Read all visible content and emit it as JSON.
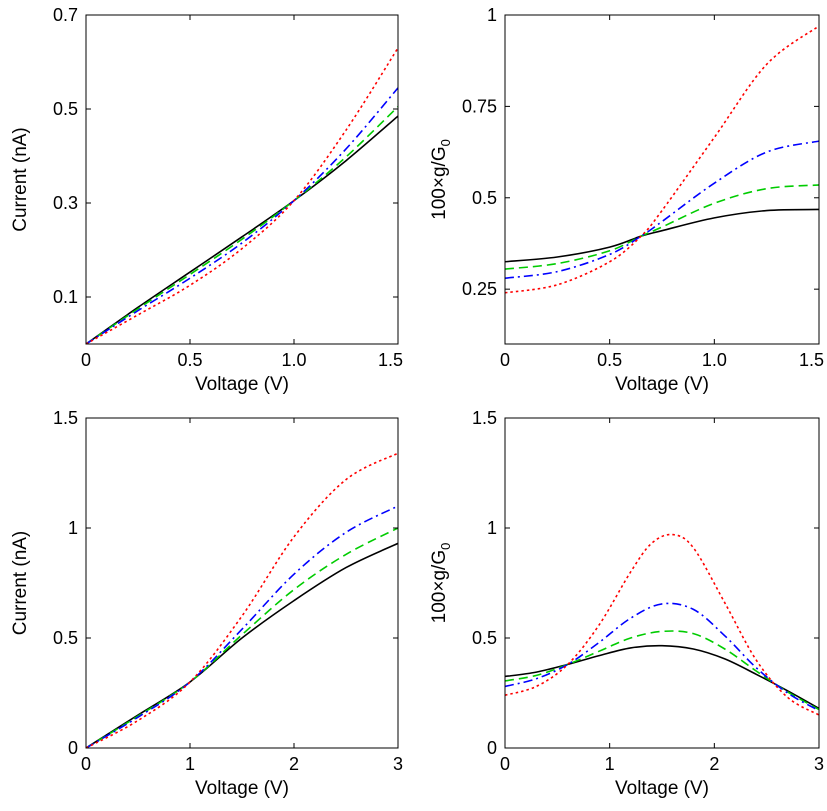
{
  "chart_data": [
    {
      "type": "line",
      "xlabel": "Voltage (V)",
      "ylabel": "Current (nA)",
      "xlim": [
        0,
        1.5
      ],
      "ylim": [
        0,
        0.7
      ],
      "xticks": [
        0,
        0.5,
        1,
        1.5
      ],
      "xtick_labels": [
        "0",
        "0.5",
        "1.0",
        "1.5"
      ],
      "yticks": [
        0.1,
        0.3,
        0.5,
        0.7
      ],
      "ytick_labels": [
        "0.1",
        "0.3",
        "0.5",
        "0.7"
      ],
      "grid": false,
      "series": [
        {
          "color": "#000000",
          "style": "solid",
          "x": [
            0,
            0.25,
            0.5,
            0.75,
            1.0,
            1.25,
            1.5
          ],
          "y": [
            0,
            0.078,
            0.153,
            0.228,
            0.305,
            0.39,
            0.485
          ]
        },
        {
          "color": "#00cc00",
          "style": "dash",
          "x": [
            0,
            0.25,
            0.5,
            0.75,
            1.0,
            1.25,
            1.5
          ],
          "y": [
            0,
            0.075,
            0.148,
            0.223,
            0.305,
            0.398,
            0.505
          ]
        },
        {
          "color": "#0000ff",
          "style": "dashdot",
          "x": [
            0,
            0.25,
            0.5,
            0.75,
            1.0,
            1.25,
            1.5
          ],
          "y": [
            0,
            0.071,
            0.14,
            0.215,
            0.305,
            0.415,
            0.545
          ]
        },
        {
          "color": "#ff0000",
          "style": "dot",
          "x": [
            0,
            0.25,
            0.5,
            0.75,
            1.0,
            1.25,
            1.5
          ],
          "y": [
            0,
            0.062,
            0.125,
            0.203,
            0.305,
            0.455,
            0.63
          ]
        }
      ]
    },
    {
      "type": "line",
      "xlabel": "Voltage (V)",
      "ylabel": "100×g/G",
      "ylabel_sub": "0",
      "xlim": [
        0,
        1.5
      ],
      "ylim": [
        0.1,
        1.0
      ],
      "xticks": [
        0,
        0.5,
        1,
        1.5
      ],
      "xtick_labels": [
        "0",
        "0.5",
        "1.0",
        "1.5"
      ],
      "yticks": [
        0.25,
        0.5,
        0.75,
        1.0
      ],
      "ytick_labels": [
        "0.25",
        "0.5",
        "0.75",
        "1"
      ],
      "grid": false,
      "series": [
        {
          "color": "#000000",
          "style": "solid",
          "x": [
            0,
            0.25,
            0.5,
            0.65,
            0.75,
            1.0,
            1.25,
            1.5
          ],
          "y": [
            0.325,
            0.338,
            0.365,
            0.395,
            0.41,
            0.445,
            0.465,
            0.468
          ]
        },
        {
          "color": "#00cc00",
          "style": "dash",
          "x": [
            0,
            0.25,
            0.5,
            0.65,
            0.75,
            1.0,
            1.25,
            1.5
          ],
          "y": [
            0.305,
            0.32,
            0.355,
            0.395,
            0.42,
            0.485,
            0.525,
            0.535
          ]
        },
        {
          "color": "#0000ff",
          "style": "dashdot",
          "x": [
            0,
            0.25,
            0.5,
            0.65,
            0.75,
            1.0,
            1.25,
            1.5
          ],
          "y": [
            0.28,
            0.298,
            0.345,
            0.395,
            0.435,
            0.54,
            0.625,
            0.655
          ]
        },
        {
          "color": "#ff0000",
          "style": "dot",
          "x": [
            0,
            0.25,
            0.5,
            0.65,
            0.75,
            1.0,
            1.25,
            1.5
          ],
          "y": [
            0.24,
            0.262,
            0.325,
            0.395,
            0.465,
            0.665,
            0.865,
            0.97
          ]
        }
      ]
    },
    {
      "type": "line",
      "xlabel": "Voltage (V)",
      "ylabel": "Current (nA)",
      "xlim": [
        0,
        3
      ],
      "ylim": [
        0,
        1.5
      ],
      "xticks": [
        0,
        1,
        2,
        3
      ],
      "xtick_labels": [
        "0",
        "1",
        "2",
        "3"
      ],
      "yticks": [
        0,
        0.5,
        1,
        1.5
      ],
      "ytick_labels": [
        "0",
        "0.5",
        "1",
        "1.5"
      ],
      "grid": false,
      "series": [
        {
          "color": "#000000",
          "style": "solid",
          "x": [
            0,
            0.5,
            1.0,
            1.5,
            2.0,
            2.5,
            3.0
          ],
          "y": [
            0,
            0.15,
            0.3,
            0.5,
            0.67,
            0.82,
            0.93
          ]
        },
        {
          "color": "#00cc00",
          "style": "dash",
          "x": [
            0,
            0.5,
            1.0,
            1.5,
            2.0,
            2.5,
            3.0
          ],
          "y": [
            0,
            0.145,
            0.3,
            0.515,
            0.72,
            0.88,
            1.0
          ]
        },
        {
          "color": "#0000ff",
          "style": "dashdot",
          "x": [
            0,
            0.5,
            1.0,
            1.5,
            2.0,
            2.5,
            3.0
          ],
          "y": [
            0,
            0.14,
            0.3,
            0.54,
            0.79,
            0.98,
            1.1
          ]
        },
        {
          "color": "#ff0000",
          "style": "dot",
          "x": [
            0,
            0.5,
            1.0,
            1.5,
            2.0,
            2.5,
            3.0
          ],
          "y": [
            0,
            0.125,
            0.3,
            0.6,
            0.96,
            1.22,
            1.34
          ]
        }
      ]
    },
    {
      "type": "line",
      "xlabel": "Voltage (V)",
      "ylabel": "100×g/G",
      "ylabel_sub": "0",
      "xlim": [
        0,
        3
      ],
      "ylim": [
        0,
        1.5
      ],
      "xticks": [
        0,
        1,
        2,
        3
      ],
      "xtick_labels": [
        "0",
        "1",
        "2",
        "3"
      ],
      "yticks": [
        0,
        0.5,
        1,
        1.5
      ],
      "ytick_labels": [
        "0",
        "0.5",
        "1",
        "1.5"
      ],
      "grid": false,
      "series": [
        {
          "color": "#000000",
          "style": "solid",
          "x": [
            0,
            0.3,
            0.6,
            0.9,
            1.2,
            1.5,
            1.8,
            2.1,
            2.4,
            2.7,
            3.0
          ],
          "y": [
            0.325,
            0.345,
            0.38,
            0.42,
            0.455,
            0.465,
            0.45,
            0.405,
            0.335,
            0.26,
            0.18
          ]
        },
        {
          "color": "#00cc00",
          "style": "dash",
          "x": [
            0,
            0.3,
            0.6,
            0.9,
            1.2,
            1.5,
            1.8,
            2.1,
            2.4,
            2.7,
            3.0
          ],
          "y": [
            0.305,
            0.33,
            0.38,
            0.44,
            0.5,
            0.53,
            0.52,
            0.45,
            0.35,
            0.255,
            0.175
          ]
        },
        {
          "color": "#0000ff",
          "style": "dashdot",
          "x": [
            0,
            0.3,
            0.6,
            0.9,
            1.2,
            1.5,
            1.8,
            2.1,
            2.4,
            2.7,
            3.0
          ],
          "y": [
            0.28,
            0.315,
            0.38,
            0.48,
            0.59,
            0.655,
            0.63,
            0.51,
            0.365,
            0.25,
            0.17
          ]
        },
        {
          "color": "#ff0000",
          "style": "dot",
          "x": [
            0,
            0.3,
            0.6,
            0.9,
            1.2,
            1.4,
            1.6,
            1.8,
            2.1,
            2.4,
            2.7,
            3.0
          ],
          "y": [
            0.24,
            0.28,
            0.38,
            0.56,
            0.8,
            0.93,
            0.97,
            0.91,
            0.66,
            0.4,
            0.23,
            0.15
          ]
        }
      ]
    }
  ]
}
